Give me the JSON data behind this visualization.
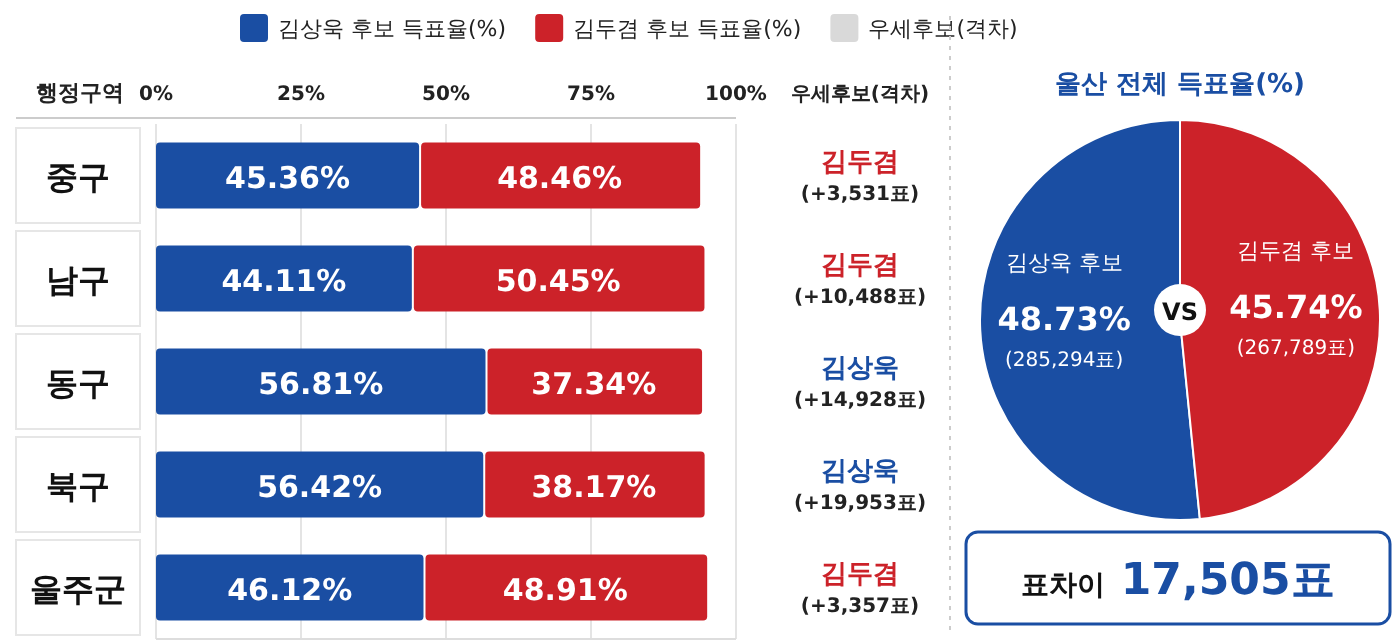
{
  "chart_data": [
    {
      "type": "bar",
      "orientation": "horizontal",
      "stacked": true,
      "ylabel": "행정구역",
      "categories": [
        "중구",
        "남구",
        "동구",
        "북구",
        "울주군"
      ],
      "series": [
        {
          "name": "김상욱 후보 득표율(%)",
          "color": "#1a4ea3",
          "values": [
            45.36,
            44.11,
            56.81,
            56.42,
            46.12
          ],
          "value_labels": [
            "45.36%",
            "44.11%",
            "56.81%",
            "56.42%",
            "46.12%"
          ]
        },
        {
          "name": "김두겸 후보 득표율(%)",
          "color": "#cc2229",
          "values": [
            48.46,
            50.45,
            37.34,
            38.17,
            48.91
          ],
          "value_labels": [
            "48.46%",
            "50.45%",
            "37.34%",
            "38.17%",
            "48.91%"
          ]
        }
      ],
      "xlim": [
        0,
        100
      ],
      "xticks": [
        {
          "value": 0,
          "label": "0%"
        },
        {
          "value": 25,
          "label": "25%"
        },
        {
          "value": 50,
          "label": "50%"
        },
        {
          "value": 75,
          "label": "75%"
        },
        {
          "value": 100,
          "label": "100%"
        }
      ],
      "grid": "x",
      "legend": "top",
      "annotations": [
        "우세후보(격차)",
        "김두겸\n(+3,531표)",
        "김두겸\n(+10,488표)",
        "김상욱\n(+14,928표)",
        "김상욱\n(+19,953표)",
        "김두겸\n(+3,357표)"
      ]
    },
    {
      "type": "pie",
      "title": "울산 전체 득표율(%)",
      "categories": [
        "김상욱 후보",
        "김두겸 후보"
      ],
      "values": [
        48.73,
        45.74
      ],
      "colors": [
        "#1a4ea3",
        "#cc2229"
      ],
      "value_labels": [
        "48.73%",
        "45.74%"
      ],
      "annotations": [
        "(285,294표)",
        "(267,789표)",
        "VS",
        "표차이 17,505표"
      ]
    }
  ]
}
